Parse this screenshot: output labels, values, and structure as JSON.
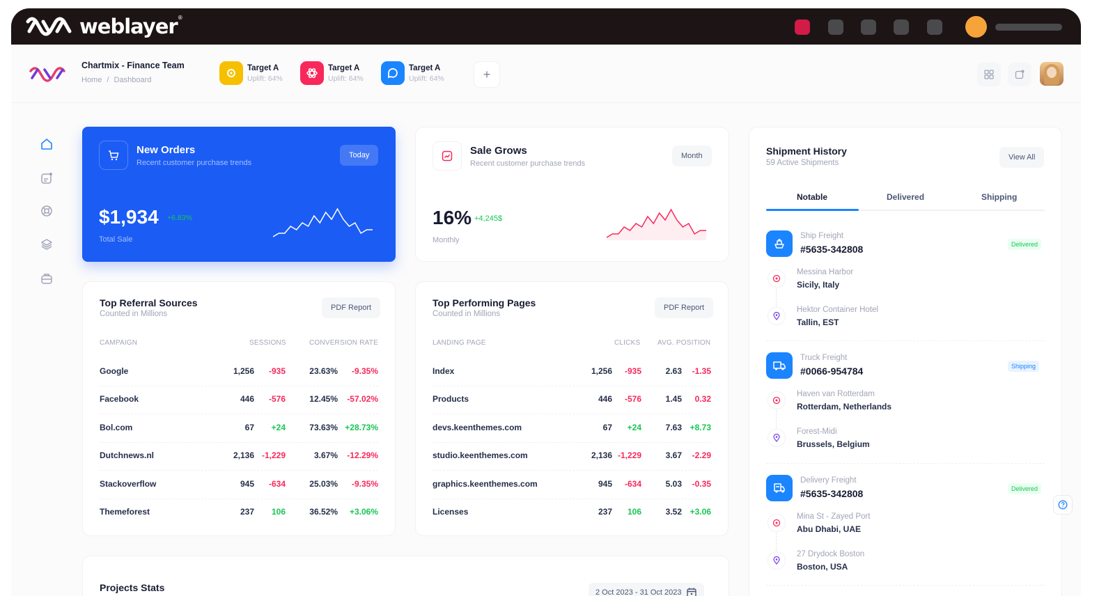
{
  "brandbar": {
    "brand_name": "weblayer",
    "trademark": "®"
  },
  "header": {
    "team_title": "Chartmix - Finance Team",
    "breadcrumb": [
      "Home",
      "/",
      "Dashboard"
    ],
    "targets": [
      {
        "name": "Target A",
        "sub": "Uplift: 64%",
        "color": "#f6c000"
      },
      {
        "name": "Target A",
        "sub": "Uplift: 64%",
        "color": "#f8285a"
      },
      {
        "name": "Target A",
        "sub": "Uplift: 64%",
        "color": "#1b84ff"
      }
    ],
    "add_label": "+"
  },
  "new_orders": {
    "title": "New Orders",
    "subtitle": "Recent customer purchase trends",
    "filter": "Today",
    "amount": "$1,934",
    "delta": "+6.83%",
    "label": "Total Sale",
    "sparkline": [
      2,
      3,
      3,
      5,
      4,
      6,
      5,
      8,
      6,
      9,
      7,
      10,
      7,
      5,
      6,
      3,
      4,
      4
    ]
  },
  "sale_grows": {
    "title": "Sale Grows",
    "subtitle": "Recent customer purchase trends",
    "filter": "Month",
    "amount": "16%",
    "delta": "+4,245$",
    "label": "Monthly",
    "sparkline": [
      2,
      3,
      3,
      5,
      4,
      6,
      5,
      8,
      6,
      9,
      7,
      10,
      7,
      5,
      6,
      3,
      4,
      4
    ]
  },
  "referral": {
    "title": "Top Referral Sources",
    "subtitle": "Counted in Millions",
    "action": "PDF Report",
    "columns": [
      "CAMPAIGN",
      "SESSIONS",
      "CONVERSION RATE"
    ],
    "rows": [
      {
        "name": "Google",
        "sessions": "1,256",
        "s_delta": "-935",
        "s_pos": false,
        "rate": "23.63%",
        "r_delta": "-9.35%",
        "r_pos": false
      },
      {
        "name": "Facebook",
        "sessions": "446",
        "s_delta": "-576",
        "s_pos": false,
        "rate": "12.45%",
        "r_delta": "-57.02%",
        "r_pos": false
      },
      {
        "name": "Bol.com",
        "sessions": "67",
        "s_delta": "+24",
        "s_pos": true,
        "rate": "73.63%",
        "r_delta": "+28.73%",
        "r_pos": true
      },
      {
        "name": "Dutchnews.nl",
        "sessions": "2,136",
        "s_delta": "-1,229",
        "s_pos": false,
        "rate": "3.67%",
        "r_delta": "-12.29%",
        "r_pos": false
      },
      {
        "name": "Stackoverflow",
        "sessions": "945",
        "s_delta": "-634",
        "s_pos": false,
        "rate": "25.03%",
        "r_delta": "-9.35%",
        "r_pos": false
      },
      {
        "name": "Themeforest",
        "sessions": "237",
        "s_delta": "106",
        "s_pos": true,
        "rate": "36.52%",
        "r_delta": "+3.06%",
        "r_pos": true
      }
    ]
  },
  "pages": {
    "title": "Top Performing Pages",
    "subtitle": "Counted in Millions",
    "action": "PDF Report",
    "columns": [
      "LANDING PAGE",
      "CLICKS",
      "AVG. POSITION"
    ],
    "rows": [
      {
        "name": "Index",
        "clicks": "1,256",
        "c_delta": "-935",
        "c_pos": false,
        "avg": "2.63",
        "a_delta": "-1.35",
        "a_pos": false
      },
      {
        "name": "Products",
        "clicks": "446",
        "c_delta": "-576",
        "c_pos": false,
        "avg": "1.45",
        "a_delta": "0.32",
        "a_pos": false
      },
      {
        "name": "devs.keenthemes.com",
        "clicks": "67",
        "c_delta": "+24",
        "c_pos": true,
        "avg": "7.63",
        "a_delta": "+8.73",
        "a_pos": true
      },
      {
        "name": "studio.keenthemes.com",
        "clicks": "2,136",
        "c_delta": "-1,229",
        "c_pos": false,
        "avg": "3.67",
        "a_delta": "-2.29",
        "a_pos": false
      },
      {
        "name": "graphics.keenthemes.com",
        "clicks": "945",
        "c_delta": "-634",
        "c_pos": false,
        "avg": "5.03",
        "a_delta": "-0.35",
        "a_pos": false
      },
      {
        "name": "Licenses",
        "clicks": "237",
        "c_delta": "106",
        "c_pos": true,
        "avg": "3.52",
        "a_delta": "+3.06",
        "a_pos": true
      }
    ]
  },
  "shipment": {
    "title": "Shipment History",
    "subtitle": "59 Active Shipments",
    "action": "View All",
    "tabs": [
      "Notable",
      "Delivered",
      "Shipping"
    ],
    "active_tab": "Notable",
    "items": [
      {
        "type": "Ship Freight",
        "id": "#5635-342808",
        "status": "Delivered",
        "icon": "ship-icon",
        "from_name": "Messina Harbor",
        "from_place": "Sicily, Italy",
        "to_name": "Hektor Container Hotel",
        "to_place": "Tallin, EST"
      },
      {
        "type": "Truck Freight",
        "id": "#0066-954784",
        "status": "Shipping",
        "icon": "truck-icon",
        "from_name": "Haven van Rotterdam",
        "from_place": "Rotterdam, Netherlands",
        "to_name": "Forest-Midi",
        "to_place": "Brussels, Belgium"
      },
      {
        "type": "Delivery Freight",
        "id": "#5635-342808",
        "status": "Delivered",
        "icon": "delivery-truck-icon",
        "from_name": "Mina St - Zayed Port",
        "from_place": "Abu Dhabi, UAE",
        "to_name": "27 Drydock Boston",
        "to_place": "Boston, USA"
      }
    ]
  },
  "projects": {
    "title": "Projects Stats",
    "date_range": "2 Oct 2023 - 31 Oct 2023"
  },
  "colors": {
    "primary": "#1b84ff",
    "orders_card": "#1b5cf5",
    "danger": "#f8285a",
    "success": "#17c653",
    "topbar": "#1d1416"
  }
}
